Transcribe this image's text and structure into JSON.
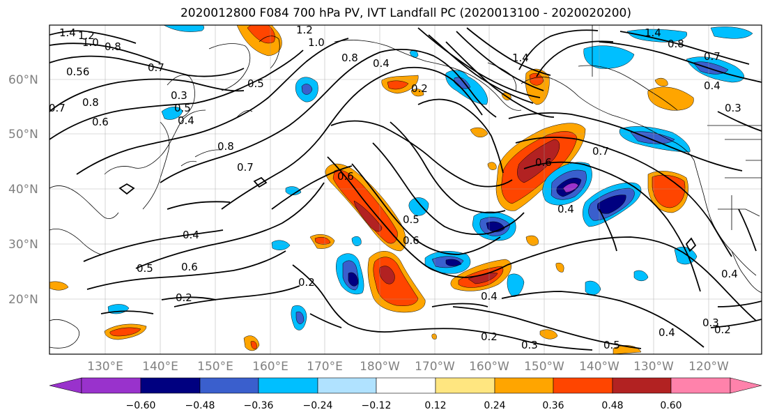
{
  "title": "2020012800 F084 700 hPa PV, IVT Landfall PC (2020013100 - 2020020200)",
  "lat_labels": [
    "60°N",
    "50°N",
    "40°N",
    "30°N",
    "20°N"
  ],
  "lon_labels": [
    "130°E",
    "140°E",
    "150°E",
    "160°E",
    "170°E",
    "180°W",
    "170°W",
    "160°W",
    "150°W",
    "140°W",
    "130°W",
    "120°W"
  ],
  "colorbar": {
    "ticks": [
      "−0.60",
      "−0.48",
      "−0.36",
      "−0.24",
      "−0.12",
      "0.12",
      "0.24",
      "0.36",
      "0.48",
      "0.60"
    ],
    "colors": [
      "#9932cc",
      "#000080",
      "#3a5fcd",
      "#00bfff",
      "#b0e2ff",
      "#ffffff",
      "#ffe680",
      "#ffa500",
      "#ff4500",
      "#b22222",
      "#ff82ab"
    ]
  },
  "contour_labels": [
    "1.4",
    "1.2",
    "1.0",
    "0.8",
    "0.7",
    "0.56",
    "0.8",
    "0.6",
    "0.7",
    "0.3",
    "0.5",
    "0.4",
    "1.0",
    "1.2",
    "0.8",
    "0.4",
    "0.2",
    "1.4",
    "1.4",
    "0.8",
    "0.7",
    "0.4",
    "0.3",
    "0.5",
    "0.8",
    "0.7",
    "0.6",
    "0.5",
    "0.6",
    "0.6",
    "0.7",
    "0.4",
    "0.4",
    "0.5",
    "0.6",
    "0.2",
    "0.2",
    "0.2",
    "0.3",
    "0.5",
    "0.4",
    "0.3",
    "0.2",
    "0.4",
    "0.4"
  ]
}
